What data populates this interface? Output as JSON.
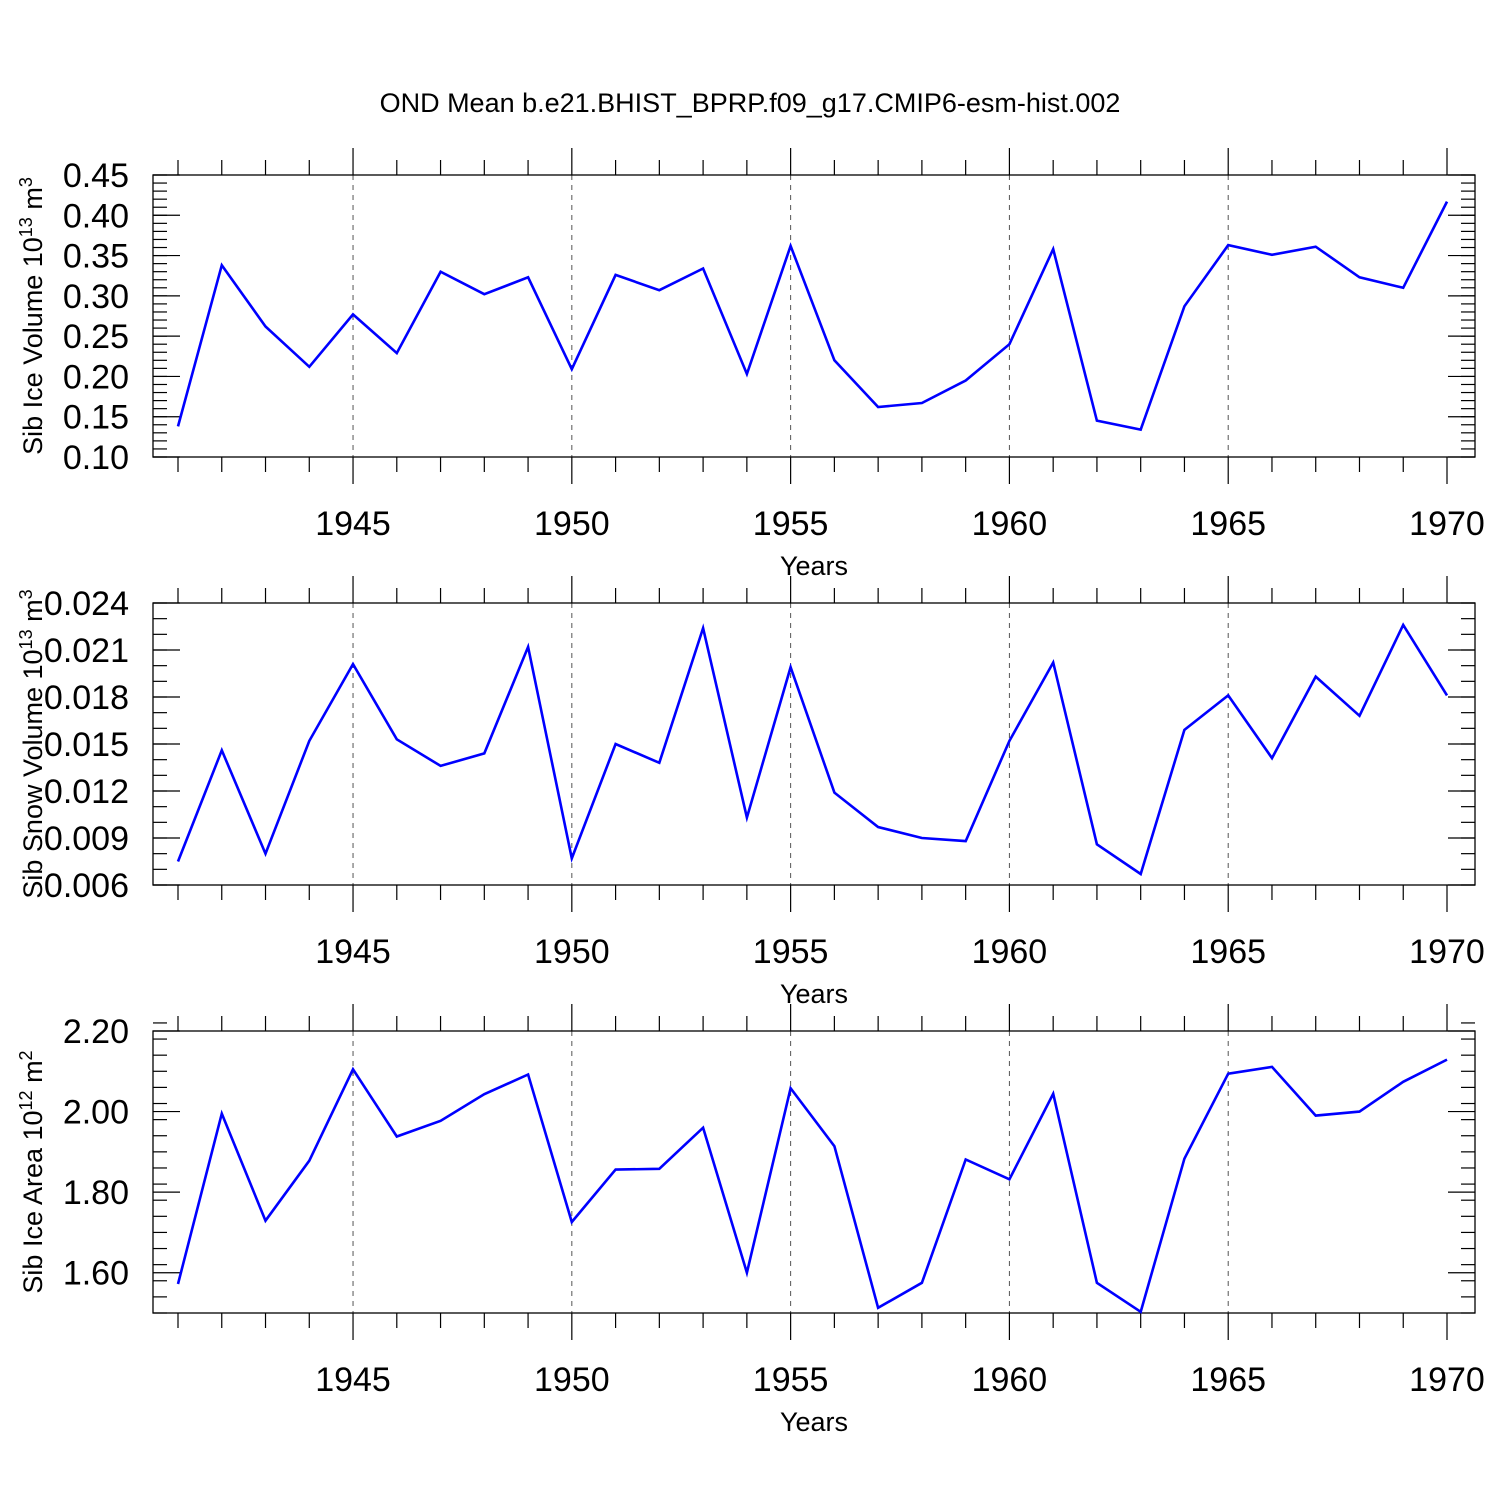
{
  "title": "OND Mean b.e21.BHIST_BPRP.f09_g17.CMIP6-esm-hist.002",
  "chart_data": [
    {
      "type": "line",
      "title": "",
      "xlabel": "Years",
      "ylabel": "Sib Ice Volume 10",
      "ylabel_exp": "13",
      "ylabel_unit": " m",
      "ylabel_unit_exp": "3",
      "xlim": [
        1941,
        1970
      ],
      "ylim": [
        0.1,
        0.45
      ],
      "x_ticks": [
        1945,
        1950,
        1955,
        1960,
        1965,
        1970
      ],
      "x_tick_labels": [
        "1945",
        "1950",
        "1955",
        "1960",
        "1965",
        "1970"
      ],
      "y_ticks": [
        0.1,
        0.15,
        0.2,
        0.25,
        0.3,
        0.35,
        0.4,
        0.45
      ],
      "y_tick_labels": [
        "0.10",
        "0.15",
        "0.20",
        "0.25",
        "0.30",
        "0.35",
        "0.40",
        "0.45"
      ],
      "y_minor_step": 0.01,
      "grid": "vertical dashed at major x ticks",
      "color": "#0000ff",
      "x": [
        1941,
        1942,
        1943,
        1944,
        1945,
        1946,
        1947,
        1948,
        1949,
        1950,
        1951,
        1952,
        1953,
        1954,
        1955,
        1956,
        1957,
        1958,
        1959,
        1960,
        1961,
        1962,
        1963,
        1964,
        1965,
        1966,
        1967,
        1968,
        1969,
        1970
      ],
      "values": [
        0.138,
        0.338,
        0.262,
        0.212,
        0.277,
        0.229,
        0.33,
        0.302,
        0.323,
        0.209,
        0.326,
        0.307,
        0.334,
        0.203,
        0.362,
        0.22,
        0.162,
        0.167,
        0.195,
        0.24,
        0.358,
        0.145,
        0.134,
        0.287,
        0.363,
        0.351,
        0.361,
        0.323,
        0.31,
        0.417
      ]
    },
    {
      "type": "line",
      "title": "",
      "xlabel": "Years",
      "ylabel": "Sib Snow Volume 10",
      "ylabel_exp": "13",
      "ylabel_unit": " m",
      "ylabel_unit_exp": "3",
      "xlim": [
        1941,
        1970
      ],
      "ylim": [
        0.006,
        0.024
      ],
      "x_ticks": [
        1945,
        1950,
        1955,
        1960,
        1965,
        1970
      ],
      "x_tick_labels": [
        "1945",
        "1950",
        "1955",
        "1960",
        "1965",
        "1970"
      ],
      "y_ticks": [
        0.006,
        0.009,
        0.012,
        0.015,
        0.018,
        0.021,
        0.024
      ],
      "y_tick_labels": [
        "0.006",
        "0.009",
        "0.012",
        "0.015",
        "0.018",
        "0.021",
        "0.024"
      ],
      "y_minor_step": 0.001,
      "grid": "vertical dashed at major x ticks",
      "color": "#0000ff",
      "x": [
        1941,
        1942,
        1943,
        1944,
        1945,
        1946,
        1947,
        1948,
        1949,
        1950,
        1951,
        1952,
        1953,
        1954,
        1955,
        1956,
        1957,
        1958,
        1959,
        1960,
        1961,
        1962,
        1963,
        1964,
        1965,
        1966,
        1967,
        1968,
        1969,
        1970
      ],
      "values": [
        0.0075,
        0.0146,
        0.008,
        0.0152,
        0.0201,
        0.0153,
        0.0136,
        0.0144,
        0.0212,
        0.0077,
        0.015,
        0.0138,
        0.0224,
        0.0103,
        0.0199,
        0.0119,
        0.0097,
        0.009,
        0.0088,
        0.0152,
        0.0202,
        0.0086,
        0.0067,
        0.0159,
        0.0181,
        0.0141,
        0.0193,
        0.0168,
        0.0226,
        0.0181
      ]
    },
    {
      "type": "line",
      "title": "",
      "xlabel": "Years",
      "ylabel": "Sib Ice Area 10",
      "ylabel_exp": "12",
      "ylabel_unit": " m",
      "ylabel_unit_exp": "2",
      "xlim": [
        1941,
        1970
      ],
      "ylim": [
        1.5,
        2.2
      ],
      "x_ticks": [
        1945,
        1950,
        1955,
        1960,
        1965,
        1970
      ],
      "x_tick_labels": [
        "1945",
        "1950",
        "1955",
        "1960",
        "1965",
        "1970"
      ],
      "y_ticks": [
        1.6,
        1.8,
        2.0,
        2.2
      ],
      "y_tick_labels": [
        "1.60",
        "1.80",
        "2.00",
        "2.20"
      ],
      "y_minor_step": 0.04,
      "grid": "vertical dashed at major x ticks",
      "color": "#0000ff",
      "x": [
        1941,
        1942,
        1943,
        1944,
        1945,
        1946,
        1947,
        1948,
        1949,
        1950,
        1951,
        1952,
        1953,
        1954,
        1955,
        1956,
        1957,
        1958,
        1959,
        1960,
        1961,
        1962,
        1963,
        1964,
        1965,
        1966,
        1967,
        1968,
        1969,
        1970
      ],
      "values": [
        1.572,
        1.995,
        1.729,
        1.878,
        2.105,
        1.938,
        1.977,
        2.043,
        2.092,
        1.726,
        1.856,
        1.858,
        1.96,
        1.6,
        2.058,
        1.914,
        1.513,
        1.575,
        1.881,
        1.832,
        2.044,
        1.575,
        1.503,
        1.883,
        2.094,
        2.111,
        1.99,
        2.0,
        2.074,
        2.129
      ]
    }
  ]
}
